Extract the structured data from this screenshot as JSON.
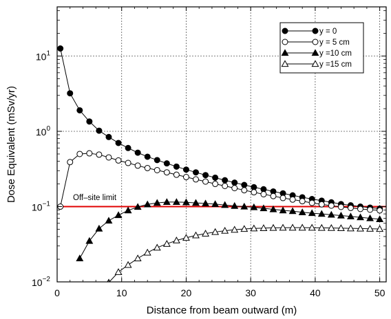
{
  "chart_data": {
    "type": "line",
    "xlabel": "Distance from beam outward (m)",
    "ylabel": "Dose Equivalent (mSv/yr)",
    "xlim": [
      0,
      51
    ],
    "ylim": [
      0.01,
      45
    ],
    "y_scale": "log",
    "grid": true,
    "legend_position": "top-right",
    "x_ticks": [
      0,
      10,
      20,
      30,
      40,
      50
    ],
    "x_tick_labels": [
      "0",
      "10",
      "20",
      "30",
      "40",
      "50"
    ],
    "y_ticks": [
      0.01,
      0.1,
      1,
      10
    ],
    "y_tick_labels": [
      {
        "base": "10",
        "exp": "−2"
      },
      {
        "base": "10",
        "exp": "−1"
      },
      {
        "base": "10",
        "exp": "0"
      },
      {
        "base": "10",
        "exp": "1"
      }
    ],
    "annotation": {
      "text": "Off–site limit",
      "value": 0.1,
      "color": "#e00000"
    },
    "series": [
      {
        "name": "y = 0",
        "marker": "filled-circle",
        "x": [
          0.5,
          2,
          3.5,
          5,
          6.5,
          8,
          9.5,
          11,
          12.5,
          14,
          15.5,
          17,
          18.5,
          20,
          21.5,
          23,
          24.5,
          26,
          27.5,
          29,
          30.5,
          32,
          33.5,
          35,
          36.5,
          38,
          39.5,
          41,
          42.5,
          44,
          45.5,
          47,
          48.5,
          50
        ],
        "y": [
          12.6,
          3.2,
          1.9,
          1.35,
          1.02,
          0.84,
          0.7,
          0.6,
          0.52,
          0.46,
          0.415,
          0.375,
          0.34,
          0.31,
          0.285,
          0.262,
          0.242,
          0.224,
          0.208,
          0.194,
          0.181,
          0.17,
          0.159,
          0.15,
          0.141,
          0.133,
          0.126,
          0.12,
          0.114,
          0.108,
          0.104,
          0.1,
          0.097,
          0.094
        ]
      },
      {
        "name": "y = 5 cm",
        "marker": "open-circle",
        "x": [
          0.5,
          2,
          3.5,
          5,
          6.5,
          8,
          9.5,
          11,
          12.5,
          14,
          15.5,
          17,
          18.5,
          20,
          21.5,
          23,
          24.5,
          26,
          27.5,
          29,
          30.5,
          32,
          33.5,
          35,
          36.5,
          38,
          39.5,
          41,
          42.5,
          44,
          45.5,
          47,
          48.5,
          50
        ],
        "y": [
          0.1,
          0.39,
          0.5,
          0.51,
          0.49,
          0.45,
          0.41,
          0.38,
          0.35,
          0.325,
          0.305,
          0.285,
          0.265,
          0.247,
          0.23,
          0.215,
          0.2,
          0.188,
          0.176,
          0.165,
          0.155,
          0.146,
          0.138,
          0.13,
          0.124,
          0.118,
          0.112,
          0.107,
          0.103,
          0.099,
          0.096,
          0.093,
          0.091,
          0.089
        ]
      },
      {
        "name": "y =10 cm",
        "marker": "filled-triangle",
        "x": [
          3.5,
          5,
          6.5,
          8,
          9.5,
          11,
          12.5,
          14,
          15.5,
          17,
          18.5,
          20,
          21.5,
          23,
          24.5,
          26,
          27.5,
          29,
          30.5,
          32,
          33.5,
          35,
          36.5,
          38,
          39.5,
          41,
          42.5,
          44,
          45.5,
          47,
          48.5,
          50
        ],
        "y": [
          0.0205,
          0.035,
          0.051,
          0.065,
          0.077,
          0.089,
          0.099,
          0.107,
          0.112,
          0.115,
          0.115,
          0.114,
          0.112,
          0.11,
          0.108,
          0.105,
          0.102,
          0.1,
          0.098,
          0.095,
          0.092,
          0.089,
          0.087,
          0.084,
          0.082,
          0.08,
          0.078,
          0.076,
          0.074,
          0.072,
          0.07,
          0.068
        ]
      },
      {
        "name": "y =15 cm",
        "marker": "open-triangle",
        "x": [
          8,
          9.5,
          11,
          12.5,
          14,
          15.5,
          17,
          18.5,
          20,
          21.5,
          23,
          24.5,
          26,
          27.5,
          29,
          30.5,
          32,
          33.5,
          35,
          36.5,
          38,
          39.5,
          41,
          42.5,
          44,
          45.5,
          47,
          48.5,
          50
        ],
        "y": [
          0.0098,
          0.0135,
          0.0168,
          0.0205,
          0.0245,
          0.0285,
          0.032,
          0.0355,
          0.0385,
          0.0415,
          0.0438,
          0.046,
          0.0478,
          0.0493,
          0.0505,
          0.0513,
          0.0518,
          0.0522,
          0.0524,
          0.0525,
          0.0525,
          0.0524,
          0.0522,
          0.052,
          0.0517,
          0.0514,
          0.0511,
          0.0508,
          0.0505
        ]
      }
    ]
  }
}
